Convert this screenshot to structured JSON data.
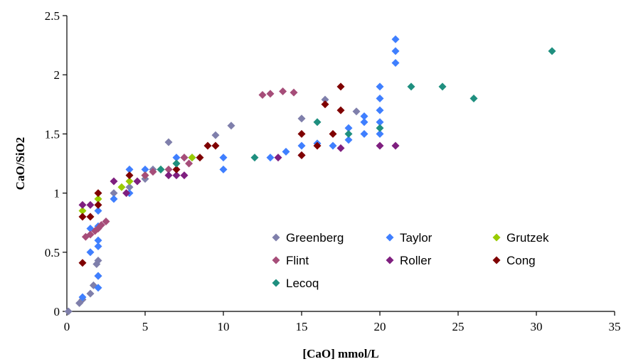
{
  "chart_data": {
    "type": "scatter",
    "xlabel": "[CaO] mmol/L",
    "ylabel": "CaO/SiO2",
    "xlim": [
      0,
      35
    ],
    "ylim": [
      0,
      2.5
    ],
    "x_ticks": [
      "0",
      "5",
      "10",
      "15",
      "20",
      "25",
      "30",
      "35"
    ],
    "y_ticks": [
      "0",
      "0.5",
      "1",
      "1.5",
      "2",
      "2.5"
    ],
    "grid": false,
    "legend": "inside-bottom-right",
    "series": [
      {
        "name": "Greenberg",
        "color": "#7f7fab",
        "points": [
          [
            0.1,
            0.0
          ],
          [
            0.8,
            0.07
          ],
          [
            1.0,
            0.1
          ],
          [
            1.5,
            0.15
          ],
          [
            1.7,
            0.22
          ],
          [
            1.9,
            0.4
          ],
          [
            2.0,
            0.43
          ],
          [
            2.0,
            0.3
          ],
          [
            3.0,
            1.0
          ],
          [
            4.0,
            1.05
          ],
          [
            5.0,
            1.12
          ],
          [
            5.5,
            1.2
          ],
          [
            6.5,
            1.43
          ],
          [
            7.5,
            1.3
          ],
          [
            9.5,
            1.49
          ],
          [
            10.5,
            1.57
          ],
          [
            15.0,
            1.63
          ],
          [
            16.5,
            1.79
          ],
          [
            18.5,
            1.69
          ]
        ]
      },
      {
        "name": "Taylor",
        "color": "#3f7fff",
        "points": [
          [
            1.0,
            0.12
          ],
          [
            1.5,
            0.5
          ],
          [
            1.5,
            0.7
          ],
          [
            2.0,
            0.6
          ],
          [
            2.0,
            0.2
          ],
          [
            2.0,
            0.3
          ],
          [
            2.0,
            0.55
          ],
          [
            2.0,
            0.72
          ],
          [
            2.0,
            0.85
          ],
          [
            3.0,
            0.95
          ],
          [
            4.0,
            1.0
          ],
          [
            4.0,
            1.2
          ],
          [
            5.0,
            1.2
          ],
          [
            6.0,
            1.2
          ],
          [
            7.0,
            1.3
          ],
          [
            8.0,
            1.3
          ],
          [
            10.0,
            1.2
          ],
          [
            10.0,
            1.3
          ],
          [
            13.0,
            1.3
          ],
          [
            14.0,
            1.35
          ],
          [
            15.0,
            1.4
          ],
          [
            16.0,
            1.42
          ],
          [
            17.0,
            1.4
          ],
          [
            18.0,
            1.45
          ],
          [
            18.0,
            1.55
          ],
          [
            19.0,
            1.5
          ],
          [
            19.0,
            1.6
          ],
          [
            19.0,
            1.65
          ],
          [
            20.0,
            1.5
          ],
          [
            20.0,
            1.6
          ],
          [
            20.0,
            1.7
          ],
          [
            20.0,
            1.8
          ],
          [
            20.0,
            1.9
          ],
          [
            21.0,
            2.1
          ],
          [
            21.0,
            2.2
          ],
          [
            21.0,
            2.3
          ]
        ]
      },
      {
        "name": "Grutzek",
        "color": "#99cc00",
        "points": [
          [
            1.0,
            0.85
          ],
          [
            2.0,
            0.95
          ],
          [
            3.5,
            1.05
          ],
          [
            4.0,
            1.1
          ],
          [
            5.0,
            1.15
          ],
          [
            6.0,
            1.2
          ],
          [
            7.0,
            1.25
          ],
          [
            8.0,
            1.3
          ]
        ]
      },
      {
        "name": "Flint",
        "color": "#a64d79",
        "points": [
          [
            1.2,
            0.63
          ],
          [
            1.5,
            0.65
          ],
          [
            1.8,
            0.68
          ],
          [
            2.0,
            0.7
          ],
          [
            2.2,
            0.73
          ],
          [
            2.5,
            0.76
          ],
          [
            5.0,
            1.15
          ],
          [
            5.5,
            1.18
          ],
          [
            6.5,
            1.2
          ],
          [
            7.5,
            1.3
          ],
          [
            7.8,
            1.25
          ],
          [
            12.5,
            1.83
          ],
          [
            13.0,
            1.84
          ],
          [
            13.8,
            1.86
          ],
          [
            14.5,
            1.85
          ]
        ]
      },
      {
        "name": "Roller",
        "color": "#7f1f7f",
        "points": [
          [
            1.0,
            0.9
          ],
          [
            1.5,
            0.9
          ],
          [
            3.0,
            1.1
          ],
          [
            3.8,
            1.0
          ],
          [
            4.5,
            1.1
          ],
          [
            6.5,
            1.15
          ],
          [
            7.0,
            1.15
          ],
          [
            7.5,
            1.15
          ],
          [
            13.5,
            1.3
          ],
          [
            15.0,
            1.32
          ],
          [
            17.5,
            1.38
          ],
          [
            20.0,
            1.4
          ],
          [
            21.0,
            1.4
          ]
        ]
      },
      {
        "name": "Cong",
        "color": "#7f0000",
        "points": [
          [
            1.0,
            0.41
          ],
          [
            1.0,
            0.8
          ],
          [
            1.5,
            0.8
          ],
          [
            2.0,
            0.9
          ],
          [
            2.0,
            1.0
          ],
          [
            4.0,
            1.15
          ],
          [
            7.0,
            1.2
          ],
          [
            8.5,
            1.3
          ],
          [
            9.0,
            1.4
          ],
          [
            9.5,
            1.4
          ],
          [
            15.0,
            1.5
          ],
          [
            15.0,
            1.32
          ],
          [
            16.0,
            1.4
          ],
          [
            16.5,
            1.75
          ],
          [
            17.0,
            1.5
          ],
          [
            17.5,
            1.7
          ],
          [
            17.5,
            1.9
          ]
        ]
      },
      {
        "name": "Lecoq",
        "color": "#1f8f7f",
        "points": [
          [
            6.0,
            1.2
          ],
          [
            7.0,
            1.25
          ],
          [
            12.0,
            1.3
          ],
          [
            16.0,
            1.6
          ],
          [
            18.0,
            1.5
          ],
          [
            20.0,
            1.55
          ],
          [
            22.0,
            1.9
          ],
          [
            24.0,
            1.9
          ],
          [
            26.0,
            1.8
          ],
          [
            31.0,
            2.2
          ]
        ]
      }
    ]
  }
}
